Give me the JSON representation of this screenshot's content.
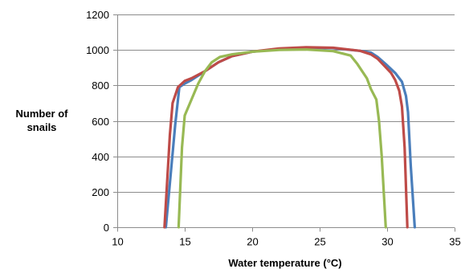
{
  "chart_data": {
    "type": "line",
    "title": "",
    "xlabel": "Water temperature (°C)",
    "ylabel_lines": [
      "Number of",
      "snails"
    ],
    "xlim": [
      10,
      35
    ],
    "ylim": [
      0,
      1200
    ],
    "x_ticks": [
      10,
      15,
      20,
      25,
      30,
      35
    ],
    "y_ticks": [
      0,
      200,
      400,
      600,
      800,
      1000,
      1200
    ],
    "grid": "horizontal",
    "legend": "none",
    "series": [
      {
        "color": "#4a7ebb",
        "points": [
          [
            13.6,
            0
          ],
          [
            14.3,
            580
          ],
          [
            14.6,
            790
          ],
          [
            15,
            810
          ],
          [
            15.5,
            830
          ],
          [
            16.5,
            880
          ],
          [
            17.5,
            930
          ],
          [
            18.5,
            965
          ],
          [
            20,
            990
          ],
          [
            22,
            1005
          ],
          [
            24,
            1012
          ],
          [
            26,
            1010
          ],
          [
            28,
            995
          ],
          [
            28.8,
            985
          ],
          [
            29.3,
            960
          ],
          [
            29.9,
            920
          ],
          [
            30.6,
            870
          ],
          [
            31.1,
            820
          ],
          [
            31.4,
            740
          ],
          [
            31.55,
            650
          ],
          [
            31.75,
            350
          ],
          [
            32.05,
            0
          ]
        ]
      },
      {
        "color": "#be4b48",
        "points": [
          [
            13.5,
            0
          ],
          [
            13.9,
            520
          ],
          [
            14.1,
            700
          ],
          [
            14.5,
            790
          ],
          [
            15,
            825
          ],
          [
            15.5,
            840
          ],
          [
            16.5,
            880
          ],
          [
            17.5,
            930
          ],
          [
            18.5,
            965
          ],
          [
            20,
            990
          ],
          [
            22,
            1008
          ],
          [
            24,
            1015
          ],
          [
            26,
            1012
          ],
          [
            28,
            995
          ],
          [
            28.8,
            975
          ],
          [
            29.3,
            950
          ],
          [
            29.8,
            910
          ],
          [
            30.3,
            870
          ],
          [
            30.6,
            830
          ],
          [
            30.9,
            770
          ],
          [
            31.1,
            680
          ],
          [
            31.3,
            450
          ],
          [
            31.5,
            0
          ]
        ]
      },
      {
        "color": "#98b954",
        "points": [
          [
            14.55,
            0
          ],
          [
            14.8,
            450
          ],
          [
            15,
            630
          ],
          [
            15.5,
            720
          ],
          [
            16,
            810
          ],
          [
            16.5,
            880
          ],
          [
            17,
            930
          ],
          [
            17.6,
            960
          ],
          [
            18.5,
            975
          ],
          [
            20,
            990
          ],
          [
            22,
            1000
          ],
          [
            24,
            1002
          ],
          [
            26,
            993
          ],
          [
            27.3,
            968
          ],
          [
            27.8,
            920
          ],
          [
            28.5,
            840
          ],
          [
            28.8,
            780
          ],
          [
            29.2,
            720
          ],
          [
            29.4,
            600
          ],
          [
            29.6,
            400
          ],
          [
            29.75,
            200
          ],
          [
            29.9,
            0
          ]
        ]
      }
    ]
  }
}
